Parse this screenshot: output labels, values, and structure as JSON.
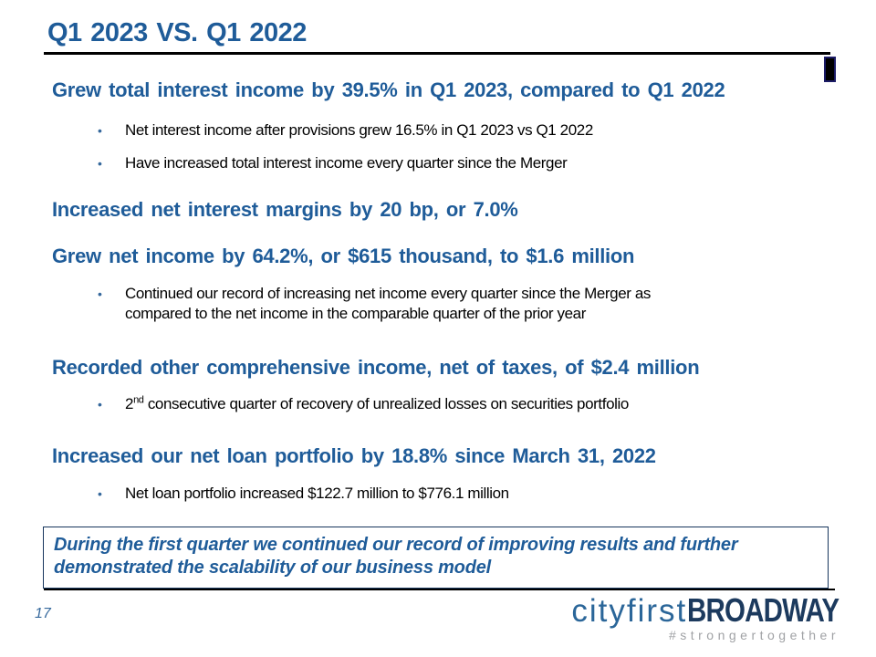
{
  "slide": {
    "title": "Q1 2023 VS. Q1 2022",
    "bullet_char": "•",
    "sections": [
      {
        "heading": "Grew total interest income by 39.5% in Q1 2023, compared to Q1 2022",
        "bullets": [
          "Net interest income after provisions grew 16.5% in Q1 2023 vs Q1 2022",
          "Have increased total interest income every quarter since the Merger"
        ]
      },
      {
        "heading": "Increased net interest margins by 20 bp, or 7.0%"
      },
      {
        "heading": "Grew net income by 64.2%, or $615 thousand, to $1.6 million",
        "bullet_lines": [
          "Continued our record of increasing net income every quarter since the Merger as",
          "compared to the net income in the comparable quarter of the prior year"
        ]
      },
      {
        "heading": "Recorded other comprehensive income, net of taxes, of $2.4 million",
        "bullet_sup": {
          "base": "2",
          "sup": "nd",
          "rest": " consecutive quarter of recovery of unrealized losses on securities portfolio"
        }
      },
      {
        "heading": "Increased our net loan portfolio by 18.8% since March 31, 2022",
        "bullets": [
          "Net loan portfolio increased $122.7 million to $776.1 million"
        ]
      }
    ],
    "callout": {
      "line1": "During the first quarter we continued our record of improving results and further",
      "line2": "demonstrated the scalability of our business model"
    },
    "footer": {
      "page_number": "17",
      "logo_city": "cityfirst",
      "logo_broadway": "BROADWAY",
      "logo_tagline": "#strongertogether"
    }
  },
  "colors": {
    "title-blue": "#1F5C99",
    "heading-blue": "#1F5C99",
    "bullet-blue": "#35689C",
    "body-black": "#000000",
    "box-border": "#17365D",
    "rule-black": "#000000",
    "logo-city-blue": "#2B6699",
    "logo-broadway-navy": "#1C3A5E",
    "logo-tag-gray": "#A0A2A5"
  }
}
